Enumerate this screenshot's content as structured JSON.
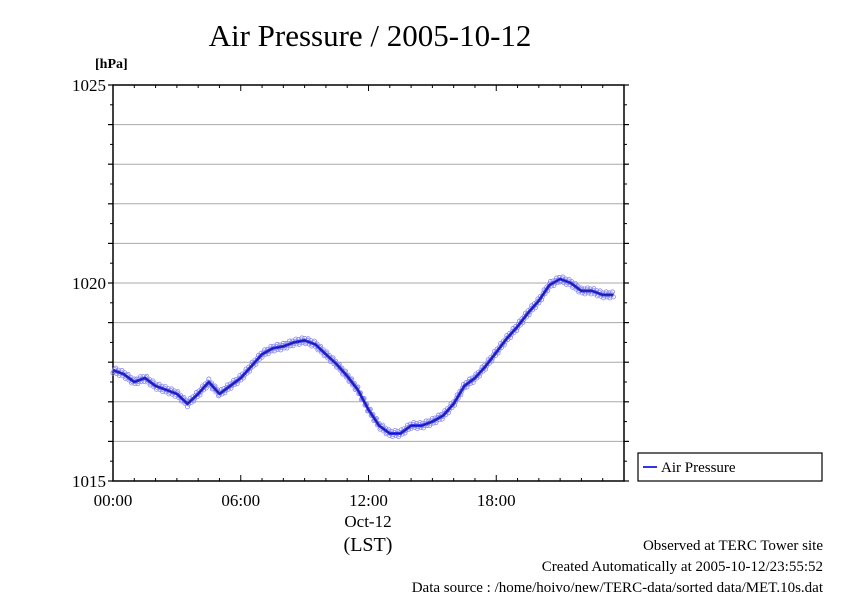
{
  "chart_data": {
    "type": "line",
    "title": "Air Pressure / 2005-10-12",
    "ylabel": "[hPa]",
    "ylim": [
      1015,
      1025
    ],
    "xlim": [
      0,
      24
    ],
    "y_ticks": [
      "1015",
      "1020",
      "1025"
    ],
    "x_ticks": [
      "00:00",
      "06:00",
      "12:00",
      "18:00"
    ],
    "x_date_label": "Oct-12",
    "x_timezone_label": "(LST)",
    "grid": true,
    "legend_position": "right",
    "series": [
      {
        "name": "Air Pressure",
        "color": "#3333ee",
        "marker": "circle",
        "points": [
          [
            0.0,
            1017.8
          ],
          [
            0.5,
            1017.7
          ],
          [
            1.0,
            1017.5
          ],
          [
            1.5,
            1017.6
          ],
          [
            2.0,
            1017.4
          ],
          [
            2.5,
            1017.3
          ],
          [
            3.0,
            1017.2
          ],
          [
            3.5,
            1016.95
          ],
          [
            4.0,
            1017.2
          ],
          [
            4.5,
            1017.5
          ],
          [
            5.0,
            1017.2
          ],
          [
            5.5,
            1017.4
          ],
          [
            6.0,
            1017.6
          ],
          [
            6.5,
            1017.9
          ],
          [
            7.0,
            1018.2
          ],
          [
            7.5,
            1018.35
          ],
          [
            8.0,
            1018.4
          ],
          [
            8.5,
            1018.5
          ],
          [
            9.0,
            1018.55
          ],
          [
            9.5,
            1018.45
          ],
          [
            10.0,
            1018.2
          ],
          [
            10.5,
            1017.95
          ],
          [
            11.0,
            1017.65
          ],
          [
            11.5,
            1017.3
          ],
          [
            12.0,
            1016.8
          ],
          [
            12.5,
            1016.4
          ],
          [
            13.0,
            1016.2
          ],
          [
            13.5,
            1016.2
          ],
          [
            14.0,
            1016.4
          ],
          [
            14.5,
            1016.4
          ],
          [
            15.0,
            1016.5
          ],
          [
            15.5,
            1016.65
          ],
          [
            16.0,
            1016.95
          ],
          [
            16.5,
            1017.4
          ],
          [
            17.0,
            1017.6
          ],
          [
            17.5,
            1017.9
          ],
          [
            18.0,
            1018.25
          ],
          [
            18.5,
            1018.6
          ],
          [
            19.0,
            1018.9
          ],
          [
            19.5,
            1019.25
          ],
          [
            20.0,
            1019.55
          ],
          [
            20.5,
            1019.95
          ],
          [
            21.0,
            1020.1
          ],
          [
            21.5,
            1020.0
          ],
          [
            22.0,
            1019.8
          ],
          [
            22.5,
            1019.8
          ],
          [
            23.0,
            1019.7
          ],
          [
            23.5,
            1019.7
          ]
        ]
      }
    ]
  },
  "footer": {
    "observed": "Observed at TERC Tower site",
    "created": "Created Automatically at 2005-10-12/23:55:52",
    "source": "Data source : /home/hoivo/new/TERC-data/sorted  data/MET.10s.dat"
  }
}
